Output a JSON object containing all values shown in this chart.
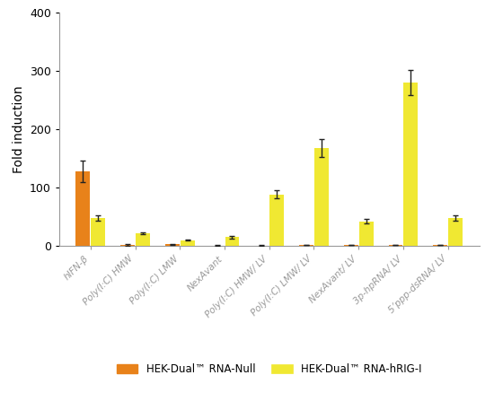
{
  "categories": [
    "hIFN-β",
    "Poly(I:C) HMW",
    "Poly(I:C) LMW",
    "NexAvant",
    "Poly(I:C) HMW/ LV",
    "Poly(I:C) LMW/ LV",
    "NexAvant/ LV",
    "3p-hpRNA/ LV",
    "5’ppp-dsRNA/ LV"
  ],
  "null_values": [
    128,
    2,
    3,
    1,
    1,
    2,
    2,
    2,
    2
  ],
  "null_errors": [
    18,
    1,
    1,
    0.5,
    0.5,
    0.5,
    0.5,
    0.5,
    0.5
  ],
  "rig_values": [
    48,
    22,
    10,
    15,
    88,
    168,
    42,
    280,
    48
  ],
  "rig_errors": [
    5,
    2,
    1,
    2,
    7,
    15,
    4,
    22,
    5
  ],
  "null_color": "#E8821A",
  "rig_color": "#F0E832",
  "ylabel": "Fold induction",
  "ylim": [
    0,
    400
  ],
  "yticks": [
    0,
    100,
    200,
    300,
    400
  ],
  "bar_width": 0.32,
  "null_label": "HEK-Dual™ RNA-Null",
  "rig_label": "HEK-Dual™ RNA-hRIG-I",
  "background": "#ffffff",
  "error_color": "#222222",
  "capsize": 2,
  "figwidth": 5.5,
  "figheight": 4.57,
  "dpi": 100
}
